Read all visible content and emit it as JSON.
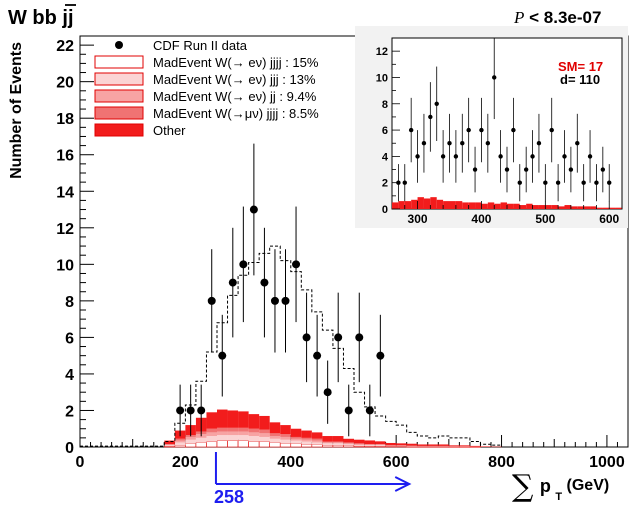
{
  "header": {
    "process_prefix": "W b",
    "process_bbar": "b",
    "process_suffix": " jj",
    "pvalue_symbol": "P",
    "pvalue_text": " < 8.3e-07"
  },
  "chart_data": [
    {
      "type": "bar",
      "panel": "main",
      "xlabel_sym": "∑",
      "xlabel_text": "p",
      "xlabel_sub": "T",
      "xlabel_unit": " (GeV)",
      "ylabel": "Number of Events",
      "xlim": [
        0,
        1040
      ],
      "ylim": [
        0,
        22.5
      ],
      "xticks": [
        0,
        200,
        400,
        600,
        800,
        1000
      ],
      "yticks": [
        0,
        2,
        4,
        6,
        8,
        10,
        12,
        14,
        16,
        18,
        20,
        22
      ],
      "bin_width": 20,
      "data_points": {
        "name": "CDF Run II data",
        "x": [
          190,
          210,
          230,
          250,
          270,
          290,
          310,
          330,
          350,
          370,
          390,
          410,
          430,
          450,
          470,
          490,
          510,
          530,
          550,
          570
        ],
        "y": [
          2,
          2,
          2,
          8,
          5,
          9,
          10,
          13,
          9,
          8,
          8,
          10,
          6,
          5,
          3,
          6,
          2,
          6,
          2,
          5
        ]
      },
      "dashed_total": {
        "x": [
          0,
          160,
          180,
          200,
          220,
          240,
          260,
          280,
          300,
          320,
          340,
          360,
          380,
          400,
          420,
          440,
          460,
          480,
          500,
          520,
          540,
          560,
          580,
          600,
          620,
          640,
          660,
          680,
          700,
          720,
          740,
          760,
          780
        ],
        "y": [
          0.05,
          0.3,
          1.3,
          2.3,
          3.6,
          5.2,
          6.8,
          8.3,
          9.4,
          10.1,
          10.6,
          11.0,
          10.2,
          9.6,
          8.6,
          7.4,
          6.4,
          5.4,
          4.3,
          3.0,
          2.2,
          1.7,
          1.4,
          1.2,
          0.8,
          0.6,
          0.5,
          0.6,
          0.5,
          0.5,
          0.3,
          0.15,
          0.1
        ]
      },
      "stack_bins_x": [
        160,
        180,
        200,
        220,
        240,
        260,
        280,
        300,
        320,
        340,
        360,
        380,
        400,
        420,
        440,
        460,
        480,
        500,
        520,
        540,
        560,
        580,
        600,
        620,
        640,
        660,
        680,
        700,
        720,
        740,
        760,
        780
      ],
      "series": [
        {
          "name": "MadEvent W(→ eν) jjjj : 15%",
          "color": "#ffffff",
          "values": [
            0.05,
            0.1,
            0.2,
            0.25,
            0.3,
            0.35,
            0.35,
            0.35,
            0.3,
            0.3,
            0.25,
            0.2,
            0.2,
            0.15,
            0.15,
            0.1,
            0.1,
            0.1,
            0.05,
            0.05,
            0.05,
            0.03,
            0.03,
            0.02,
            0.02,
            0.02,
            0.02,
            0.01,
            0.01,
            0.01,
            0.0,
            0.0
          ]
        },
        {
          "name": "MadEvent W(→ eν) jjj : 13%",
          "color": "#fbd4d4",
          "values": [
            0.05,
            0.15,
            0.2,
            0.25,
            0.3,
            0.3,
            0.3,
            0.3,
            0.3,
            0.25,
            0.2,
            0.2,
            0.15,
            0.15,
            0.1,
            0.1,
            0.1,
            0.05,
            0.05,
            0.05,
            0.05,
            0.03,
            0.03,
            0.02,
            0.02,
            0.02,
            0.02,
            0.01,
            0.01,
            0.01,
            0.0,
            0.0
          ]
        },
        {
          "name": "MadEvent W(→ eν) jj : 9.4%",
          "color": "#f7a3a3",
          "values": [
            0.05,
            0.1,
            0.15,
            0.2,
            0.2,
            0.2,
            0.2,
            0.2,
            0.2,
            0.2,
            0.15,
            0.15,
            0.1,
            0.1,
            0.1,
            0.05,
            0.05,
            0.05,
            0.05,
            0.03,
            0.03,
            0.02,
            0.02,
            0.02,
            0.01,
            0.01,
            0.01,
            0.01,
            0.01,
            0.0,
            0.0,
            0.0
          ]
        },
        {
          "name": "MadEvent W(→μν) jjjj : 8.5%",
          "color": "#f07373",
          "values": [
            0.0,
            0.1,
            0.1,
            0.15,
            0.2,
            0.2,
            0.2,
            0.2,
            0.2,
            0.2,
            0.15,
            0.15,
            0.1,
            0.1,
            0.1,
            0.05,
            0.05,
            0.05,
            0.05,
            0.03,
            0.03,
            0.02,
            0.02,
            0.02,
            0.01,
            0.01,
            0.01,
            0.01,
            0.01,
            0.0,
            0.0,
            0.0
          ]
        },
        {
          "name": "Other",
          "color": "#f21c1c",
          "values": [
            0.2,
            0.45,
            0.55,
            0.75,
            0.9,
            1.0,
            0.95,
            0.9,
            0.8,
            0.75,
            0.6,
            0.5,
            0.45,
            0.4,
            0.35,
            0.3,
            0.3,
            0.2,
            0.2,
            0.2,
            0.15,
            0.12,
            0.1,
            0.1,
            0.08,
            0.08,
            0.08,
            0.05,
            0.05,
            0.04,
            0.03,
            0.02
          ]
        }
      ],
      "threshold": {
        "value": "258",
        "x": 258,
        "arrow_to": 640,
        "color": "#1e1ef0"
      }
    },
    {
      "type": "bar",
      "panel": "inset",
      "xlim": [
        260,
        620
      ],
      "ylim": [
        0,
        13
      ],
      "xticks": [
        300,
        400,
        500,
        600
      ],
      "yticks": [
        0,
        2,
        4,
        6,
        8,
        10,
        12
      ],
      "annotation_sm": "SM= 17",
      "annotation_d": "d= 110",
      "data_points": {
        "x": [
          270,
          280,
          290,
          300,
          310,
          320,
          330,
          340,
          350,
          360,
          370,
          380,
          390,
          400,
          410,
          420,
          430,
          440,
          450,
          460,
          470,
          480,
          490,
          500,
          510,
          520,
          530,
          540,
          550,
          560,
          570,
          580,
          590,
          600
        ],
        "y": [
          2,
          2,
          6,
          4,
          5,
          7,
          8,
          4,
          5,
          4,
          5,
          6,
          3,
          6,
          5,
          10,
          4,
          3,
          6,
          2,
          3,
          4,
          5,
          2,
          6,
          2,
          4,
          3,
          5,
          2,
          4,
          2,
          3,
          2
        ]
      },
      "stack_x": [
        260,
        270,
        280,
        290,
        300,
        310,
        320,
        330,
        340,
        350,
        360,
        370,
        380,
        390,
        400,
        410,
        420,
        430,
        440,
        450,
        460,
        470,
        480,
        490,
        500,
        510,
        520,
        530,
        540,
        550,
        560,
        570,
        580,
        590,
        600,
        610
      ],
      "stack_total": [
        0.5,
        0.6,
        0.6,
        0.7,
        0.9,
        0.8,
        0.9,
        0.7,
        0.6,
        0.6,
        0.6,
        0.5,
        0.5,
        0.5,
        0.4,
        0.5,
        0.4,
        0.5,
        0.4,
        0.4,
        0.3,
        0.4,
        0.3,
        0.3,
        0.3,
        0.3,
        0.2,
        0.3,
        0.2,
        0.2,
        0.2,
        0.2,
        0.1,
        0.1,
        0.1,
        0.1
      ]
    }
  ]
}
